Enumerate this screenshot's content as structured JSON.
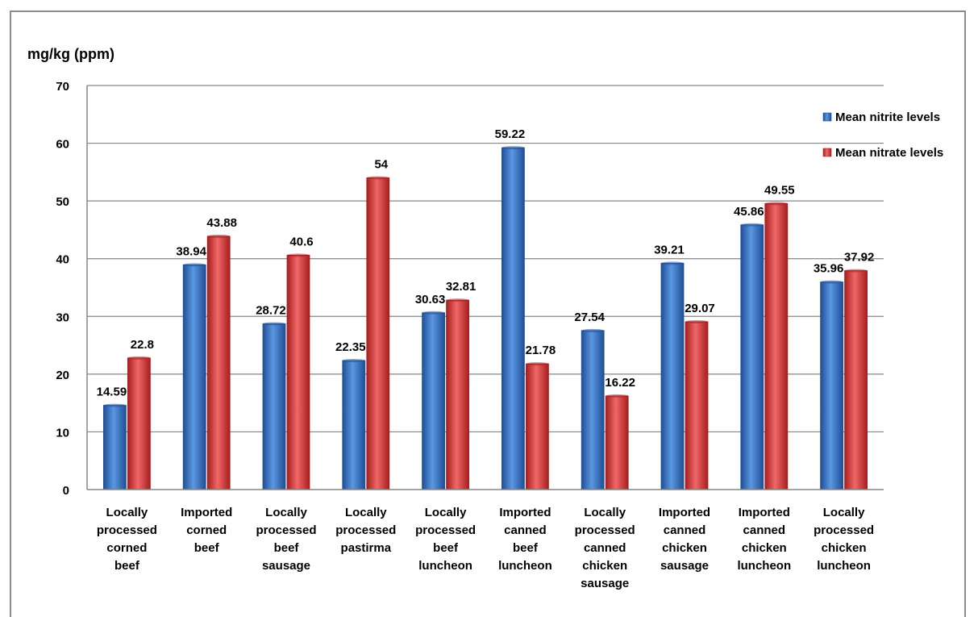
{
  "chart_data": {
    "type": "bar",
    "ylabel": "mg/kg (ppm)",
    "ylim": [
      0,
      70
    ],
    "yticks": [
      "0",
      "10",
      "20",
      "30",
      "40",
      "50",
      "60",
      "70"
    ],
    "grid": true,
    "legend_position": "top-right",
    "categories": [
      [
        "Locally",
        "processed",
        "corned",
        "beef"
      ],
      [
        "Imported",
        "corned",
        "beef"
      ],
      [
        "Locally",
        "processed",
        "beef",
        "sausage"
      ],
      [
        "Locally",
        "processed",
        "pastirma"
      ],
      [
        "Locally",
        "processed",
        "beef",
        "luncheon"
      ],
      [
        "Imported",
        "canned",
        "beef",
        "luncheon"
      ],
      [
        "Locally",
        "processed",
        "canned",
        "chicken",
        "sausage"
      ],
      [
        "Imported",
        "canned",
        "chicken",
        "sausage"
      ],
      [
        "Imported",
        "canned",
        "chicken",
        "luncheon"
      ],
      [
        "Locally",
        "processed",
        "chicken",
        "luncheon"
      ]
    ],
    "series": [
      {
        "name": "Mean nitrite levels",
        "color": "#3a78c9",
        "values": [
          14.59,
          38.94,
          28.72,
          22.35,
          30.63,
          59.22,
          27.54,
          39.21,
          45.86,
          35.96
        ],
        "labels": [
          "14.59",
          "38.94",
          "28.72",
          "22.35",
          "30.63",
          "59.22",
          "27.54",
          "39.21",
          "45.86",
          "35.96"
        ]
      },
      {
        "name": "Mean nitrate levels",
        "color": "#d83a3a",
        "values": [
          22.8,
          43.88,
          40.6,
          54,
          32.81,
          21.78,
          16.22,
          29.07,
          49.55,
          37.92
        ],
        "labels": [
          "22.8",
          "43.88",
          "40.6",
          "54",
          "32.81",
          "21.78",
          "16.22",
          "29.07",
          "49.55",
          "37.92"
        ]
      }
    ]
  }
}
